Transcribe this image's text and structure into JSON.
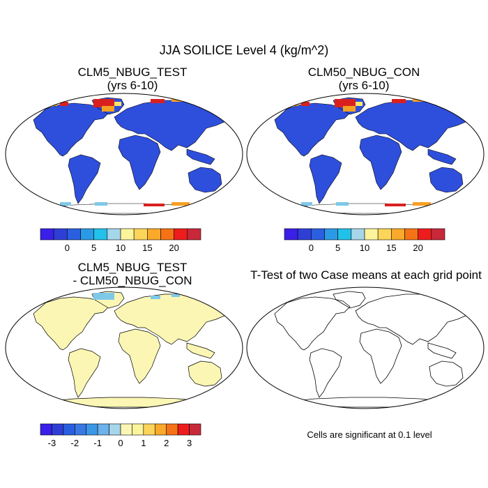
{
  "title": "JJA SOILICE Level 4 (kg/m^2)",
  "panels": {
    "top_left": {
      "title_line1": "CLM5_NBUG_TEST",
      "title_line2": "(yrs 6-10)"
    },
    "top_right": {
      "title_line1": "CLM50_NBUG_CON",
      "title_line2": "(yrs 6-10)"
    },
    "bottom_left": {
      "title_line1": "CLM5_NBUG_TEST",
      "title_line2": "- CLM50_NBUG_CON"
    },
    "bottom_right": {
      "title_line1": "T-Test of two Case means at each grid point"
    }
  },
  "colorbars": {
    "abs": {
      "colors": [
        "#3a1fe8",
        "#2f3fd6",
        "#2a5fe0",
        "#2b9ae6",
        "#22c1ea",
        "#a6d6ea",
        "#fbf49a",
        "#fbd55a",
        "#f9aa2a",
        "#f67216",
        "#ee1c1c",
        "#c8283a"
      ],
      "labels": [
        "0",
        "5",
        "10",
        "15",
        "20"
      ]
    },
    "diff": {
      "colors": [
        "#3a1fe8",
        "#2f3fd6",
        "#2a5fe0",
        "#3a78e4",
        "#3b98e6",
        "#6cb2ec",
        "#a6d6ea",
        "#fbf6b4",
        "#fbf49a",
        "#fbd55a",
        "#f9aa2a",
        "#f67216",
        "#ee1c1c",
        "#c8283a"
      ],
      "labels": [
        "-3",
        "-2",
        "-1",
        "0",
        "1",
        "2",
        "3"
      ]
    }
  },
  "note": "Cells are significant at 0.1 level",
  "map_colors": {
    "land": "#2e4fdc",
    "ice_red": "#d9201f",
    "ice_orange": "#f6a021",
    "ice_yellow": "#fbe66a",
    "ice_cyan": "#7ec8e8",
    "diff_land": "#fbf6b4"
  }
}
